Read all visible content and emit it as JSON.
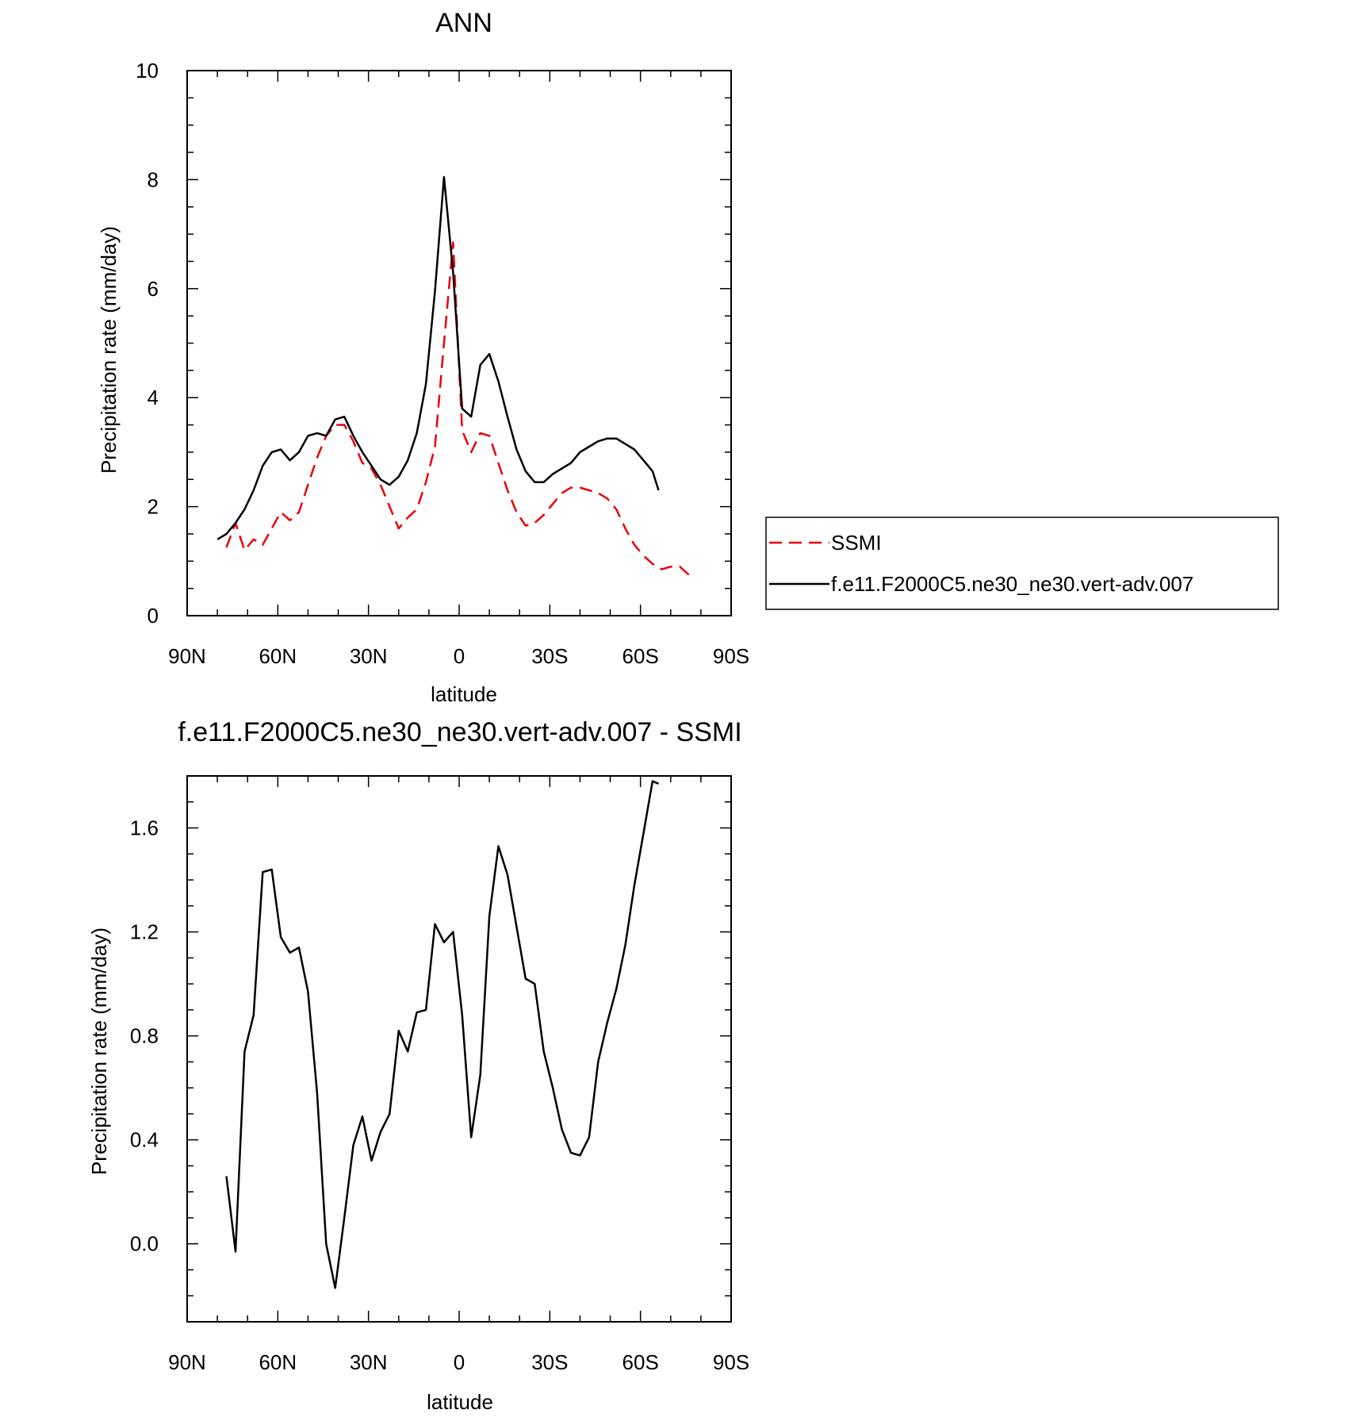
{
  "chart_data": [
    {
      "type": "line",
      "title": "ANN",
      "xlabel": "latitude",
      "ylabel": "Precipitation rate (mm/day)",
      "xlim": [
        90,
        -90
      ],
      "ylim": [
        0,
        10
      ],
      "x_ticks": [
        90,
        60,
        30,
        0,
        -30,
        -60,
        -90
      ],
      "x_tick_labels": [
        "90N",
        "60N",
        "30N",
        "0",
        "30S",
        "60S",
        "90S"
      ],
      "y_ticks": [
        0,
        2,
        4,
        6,
        8,
        10
      ],
      "y_tick_labels": [
        "0",
        "2",
        "4",
        "6",
        "8",
        "10"
      ],
      "legend_position": "right",
      "series": [
        {
          "name": "SSMI",
          "color": "#e8000b",
          "dash": "dashed",
          "x": [
            77,
            74,
            71,
            68,
            65,
            62,
            59,
            56,
            53,
            50,
            47,
            44,
            41,
            38,
            35,
            32,
            29,
            26,
            23,
            20,
            17,
            14,
            11,
            8,
            5,
            2,
            -1,
            -4,
            -7,
            -10,
            -13,
            -16,
            -19,
            -22,
            -25,
            -28,
            -31,
            -34,
            -37,
            -40,
            -43,
            -46,
            -49,
            -52,
            -55,
            -58,
            -61,
            -64,
            -67,
            -70,
            -73,
            -76
          ],
          "y": [
            1.25,
            1.7,
            1.2,
            1.4,
            1.3,
            1.6,
            1.9,
            1.75,
            1.9,
            2.4,
            2.9,
            3.3,
            3.5,
            3.5,
            3.2,
            2.8,
            2.7,
            2.4,
            2.0,
            1.6,
            1.8,
            1.95,
            2.45,
            3.1,
            5.0,
            6.85,
            3.4,
            3.0,
            3.35,
            3.3,
            2.8,
            2.3,
            1.9,
            1.65,
            1.7,
            1.85,
            2.05,
            2.25,
            2.35,
            2.35,
            2.3,
            2.25,
            2.15,
            1.95,
            1.6,
            1.3,
            1.1,
            0.95,
            0.85,
            0.9,
            0.9,
            0.75
          ]
        },
        {
          "name": "f.e11.F2000C5.ne30_ne30.vert-adv.007",
          "color": "#000000",
          "dash": "solid",
          "x": [
            80,
            77,
            74,
            71,
            68,
            65,
            62,
            59,
            56,
            53,
            50,
            47,
            44,
            41,
            38,
            35,
            32,
            29,
            26,
            23,
            20,
            17,
            14,
            11,
            8,
            5,
            2,
            -1,
            -4,
            -7,
            -10,
            -13,
            -16,
            -19,
            -22,
            -25,
            -28,
            -31,
            -34,
            -37,
            -40,
            -43,
            -46,
            -49,
            -52,
            -55,
            -58,
            -61,
            -64,
            -66
          ],
          "y": [
            1.4,
            1.5,
            1.7,
            1.95,
            2.3,
            2.75,
            3.0,
            3.05,
            2.85,
            3.0,
            3.3,
            3.35,
            3.3,
            3.6,
            3.65,
            3.3,
            3.0,
            2.75,
            2.5,
            2.4,
            2.55,
            2.85,
            3.35,
            4.25,
            5.95,
            8.05,
            6.3,
            3.8,
            3.65,
            4.6,
            4.8,
            4.3,
            3.65,
            3.05,
            2.65,
            2.45,
            2.45,
            2.6,
            2.7,
            2.8,
            3.0,
            3.1,
            3.2,
            3.25,
            3.25,
            3.15,
            3.05,
            2.85,
            2.65,
            2.3
          ]
        }
      ]
    },
    {
      "type": "line",
      "title": "f.e11.F2000C5.ne30_ne30.vert-adv.007 - SSMI",
      "xlabel": "latitude",
      "ylabel": "Precipitation rate (mm/day)",
      "xlim": [
        90,
        -90
      ],
      "ylim": [
        -0.3,
        1.8
      ],
      "x_ticks": [
        90,
        60,
        30,
        0,
        -30,
        -60,
        -90
      ],
      "x_tick_labels": [
        "90N",
        "60N",
        "30N",
        "0",
        "30S",
        "60S",
        "90S"
      ],
      "y_ticks": [
        0.0,
        0.4,
        0.8,
        1.2,
        1.6
      ],
      "y_tick_labels": [
        "0.0",
        "0.4",
        "0.8",
        "1.2",
        "1.6"
      ],
      "series": [
        {
          "color": "#000000",
          "dash": "solid",
          "x": [
            77,
            74,
            71,
            68,
            65,
            62,
            59,
            56,
            53,
            50,
            47,
            44,
            41,
            38,
            35,
            32,
            29,
            26,
            23,
            20,
            17,
            14,
            11,
            8,
            5,
            2,
            -1,
            -4,
            -7,
            -10,
            -13,
            -16,
            -19,
            -22,
            -25,
            -28,
            -31,
            -34,
            -37,
            -40,
            -43,
            -46,
            -49,
            -52,
            -55,
            -58,
            -61,
            -64,
            -66
          ],
          "y": [
            0.26,
            -0.03,
            0.74,
            0.88,
            1.43,
            1.44,
            1.18,
            1.12,
            1.14,
            0.97,
            0.58,
            0.0,
            -0.17,
            0.1,
            0.38,
            0.49,
            0.32,
            0.43,
            0.5,
            0.82,
            0.74,
            0.89,
            0.9,
            1.23,
            1.16,
            1.2,
            0.88,
            0.41,
            0.65,
            1.26,
            1.53,
            1.42,
            1.22,
            1.02,
            1.0,
            0.74,
            0.6,
            0.44,
            0.35,
            0.34,
            0.41,
            0.7,
            0.85,
            0.98,
            1.15,
            1.38,
            1.58,
            1.78,
            1.77
          ]
        }
      ]
    }
  ]
}
